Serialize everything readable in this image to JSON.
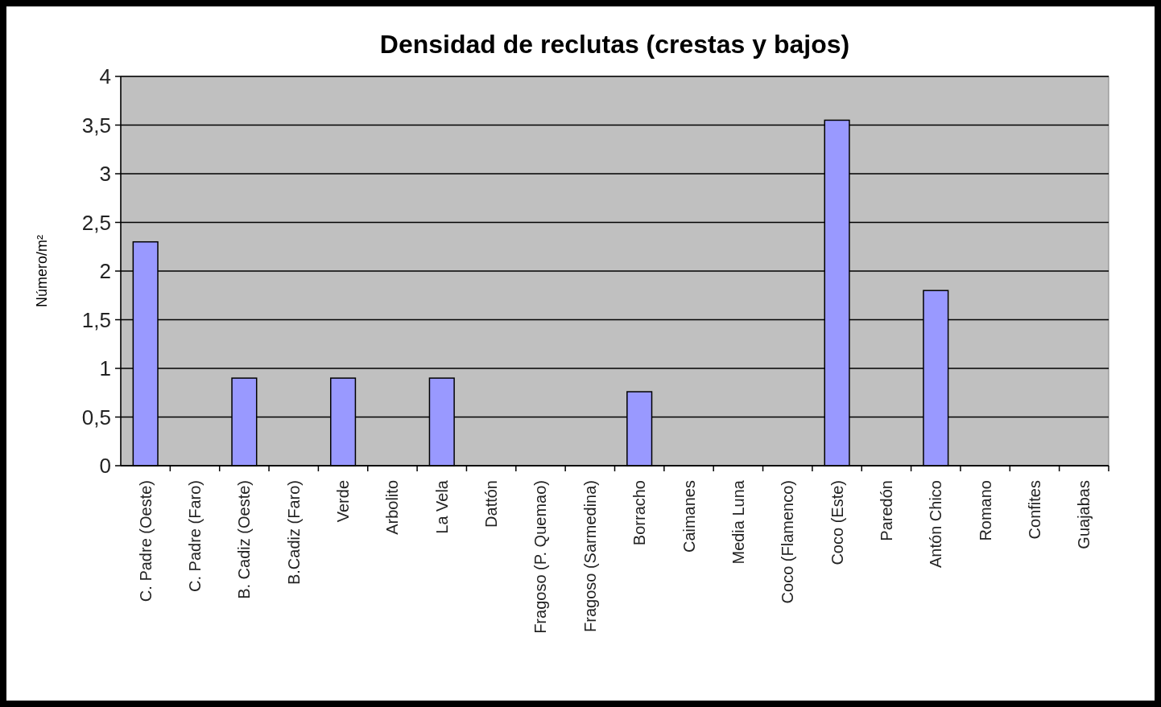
{
  "chart_data": {
    "type": "bar",
    "title": "Densidad de reclutas (crestas y bajos)",
    "ylabel": "Número/m²",
    "categories": [
      "C. Padre (Oeste)",
      "C. Padre (Faro)",
      "B. Cadiz (Oeste)",
      "B.Cadiz (Faro)",
      "Verde",
      "Arbolito",
      "La Vela",
      "Dattón",
      "Fragoso (P. Quemao)",
      "Fragoso (Sarmedina)",
      "Borracho",
      "Caimanes",
      "Media Luna",
      "Coco (Flamenco)",
      "Coco (Este)",
      "Paredón",
      "Antón Chico",
      "Romano",
      "Confites",
      "Guajabas"
    ],
    "values": [
      2.3,
      0,
      0.9,
      0,
      0.9,
      0,
      0.9,
      0,
      0,
      0,
      0.76,
      0,
      0,
      0,
      3.55,
      0,
      1.8,
      0,
      0,
      0
    ],
    "color": "#9999ff",
    "ylim": [
      0,
      4
    ],
    "yticks": [
      0,
      {
        "value": 0.5,
        "label": "0,5"
      },
      1,
      {
        "value": 1.5,
        "label": "1,5"
      },
      2,
      {
        "value": 2.5,
        "label": "2,5"
      },
      3,
      {
        "value": 3.5,
        "label": "3,5"
      },
      4
    ],
    "grid": "y"
  }
}
